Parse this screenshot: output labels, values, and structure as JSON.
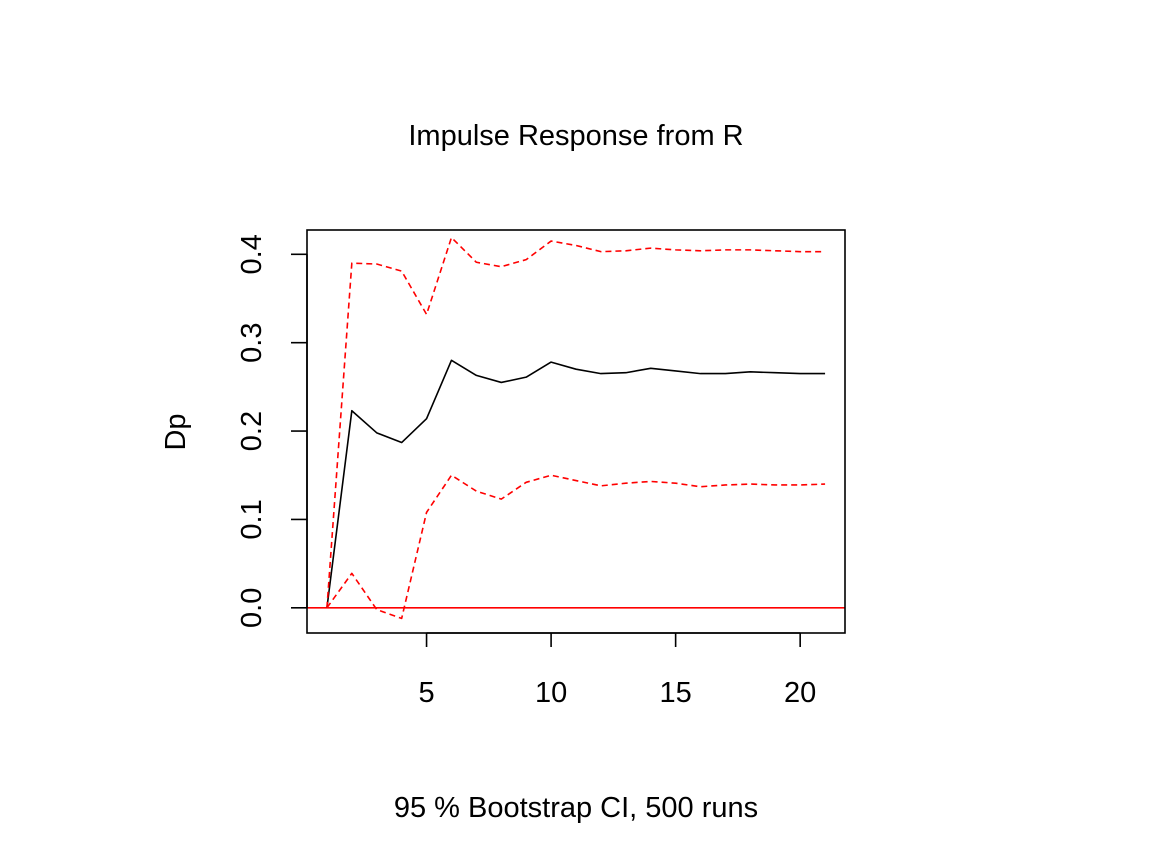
{
  "chart_data": {
    "type": "line",
    "title": "Impulse Response from R",
    "xlabel": "95 % Bootstrap CI,  500 runs",
    "ylabel": "Dp",
    "xlim": [
      0.2,
      21.8
    ],
    "ylim": [
      -0.0285,
      0.4275
    ],
    "x_ticks": [
      5,
      10,
      15,
      20
    ],
    "x_tick_labels": [
      "5",
      "10",
      "15",
      "20"
    ],
    "y_ticks": [
      0.0,
      0.1,
      0.2,
      0.3,
      0.4
    ],
    "y_tick_labels": [
      "0.0",
      "0.1",
      "0.2",
      "0.3",
      "0.4"
    ],
    "grid": false,
    "x": [
      1,
      2,
      3,
      4,
      5,
      6,
      7,
      8,
      9,
      10,
      11,
      12,
      13,
      14,
      15,
      16,
      17,
      18,
      19,
      20,
      21
    ],
    "series": [
      {
        "role": "response",
        "color": "#000000",
        "dash": "solid",
        "values": [
          0.0,
          0.223,
          0.198,
          0.187,
          0.214,
          0.28,
          0.263,
          0.255,
          0.261,
          0.278,
          0.27,
          0.265,
          0.266,
          0.271,
          0.268,
          0.265,
          0.265,
          0.267,
          0.266,
          0.265,
          0.265
        ]
      },
      {
        "role": "upper",
        "color": "#ff0000",
        "dash": "dashed",
        "values": [
          0.0,
          0.39,
          0.389,
          0.381,
          0.332,
          0.419,
          0.391,
          0.386,
          0.394,
          0.415,
          0.41,
          0.403,
          0.404,
          0.407,
          0.405,
          0.404,
          0.405,
          0.405,
          0.404,
          0.403,
          0.403
        ]
      },
      {
        "role": "lower",
        "color": "#ff0000",
        "dash": "dashed",
        "values": [
          0.0,
          0.039,
          -0.002,
          -0.012,
          0.108,
          0.15,
          0.132,
          0.123,
          0.142,
          0.15,
          0.144,
          0.138,
          0.141,
          0.143,
          0.141,
          0.137,
          0.139,
          0.14,
          0.139,
          0.139,
          0.14
        ]
      }
    ],
    "reference_line": {
      "y": 0,
      "color": "#ff0000"
    }
  }
}
